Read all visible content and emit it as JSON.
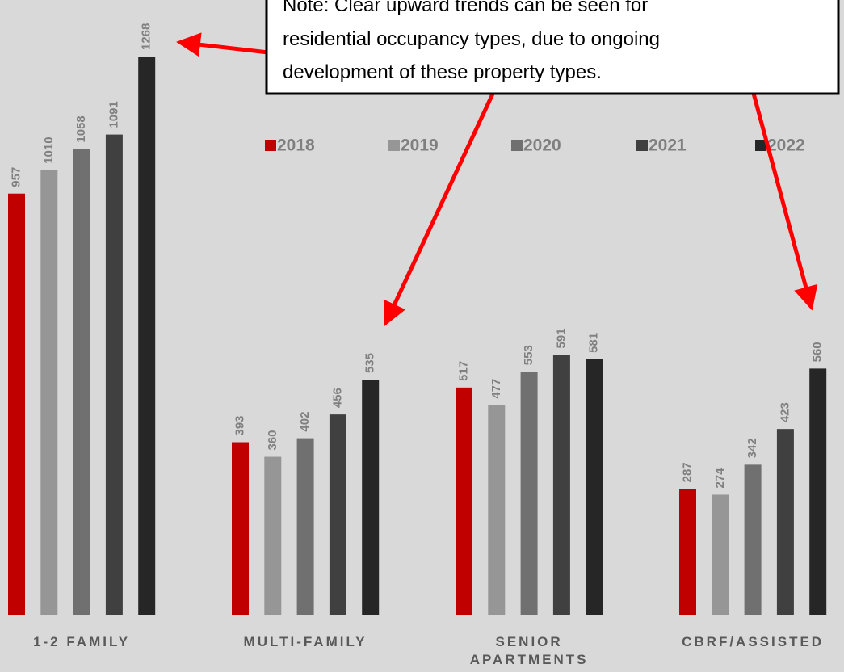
{
  "chart_data": {
    "type": "bar",
    "categories": [
      "1-2 FAMILY",
      "MULTI-FAMILY",
      "SENIOR APARTMENTS",
      "CBRF/ASSISTED"
    ],
    "series": [
      {
        "name": "2018",
        "color": "#c00000",
        "values": [
          957,
          393,
          517,
          287
        ]
      },
      {
        "name": "2019",
        "color": "#969696",
        "values": [
          1010,
          360,
          477,
          274
        ]
      },
      {
        "name": "2020",
        "color": "#707070",
        "values": [
          1058,
          402,
          553,
          342
        ]
      },
      {
        "name": "2021",
        "color": "#404040",
        "values": [
          1091,
          456,
          591,
          423
        ]
      },
      {
        "name": "2022",
        "color": "#262626",
        "values": [
          1268,
          535,
          581,
          560
        ]
      }
    ],
    "annotation": [
      "Note: Clear upward trends can be seen for",
      "residential occupancy types, due to ongoing",
      "development of these property types."
    ]
  }
}
